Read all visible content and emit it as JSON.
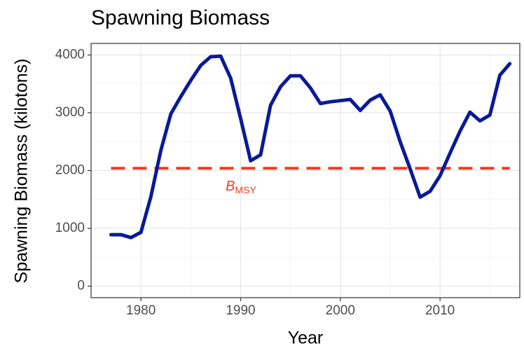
{
  "chart_data": {
    "type": "line",
    "title": "Spawning Biomass",
    "x_label": "Year",
    "y_label": "Spawning Biomass (kilotons)",
    "x": [
      1977,
      1978,
      1979,
      1980,
      1981,
      1982,
      1983,
      1984,
      1985,
      1986,
      1987,
      1988,
      1989,
      1990,
      1991,
      1992,
      1993,
      1994,
      1995,
      1996,
      1997,
      1998,
      1999,
      2000,
      2001,
      2002,
      2003,
      2004,
      2005,
      2006,
      2007,
      2008,
      2009,
      2010,
      2011,
      2012,
      2013,
      2014,
      2015,
      2016,
      2017
    ],
    "series": [
      {
        "name": "Spawning Biomass",
        "color": "#0a1a96",
        "values": [
          890,
          890,
          840,
          930,
          1550,
          2350,
          2980,
          3280,
          3560,
          3820,
          3970,
          3980,
          3600,
          2900,
          2170,
          2270,
          3130,
          3450,
          3640,
          3640,
          3430,
          3160,
          3190,
          3210,
          3230,
          3040,
          3220,
          3310,
          3030,
          2500,
          2030,
          1540,
          1640,
          1910,
          2300,
          2680,
          3010,
          2860,
          2960,
          3650,
          3850
        ]
      }
    ],
    "reference_line": {
      "label": "B",
      "subscript": "MSY",
      "value": 2040,
      "x": [
        1977,
        2017
      ],
      "color": "#f03c20"
    },
    "xlim": [
      1975,
      2018
    ],
    "xticks": [
      1980,
      1990,
      2000,
      2010
    ],
    "ylim": [
      -200,
      4200
    ],
    "yticks": [
      0,
      1000,
      2000,
      3000,
      4000
    ],
    "grid": true
  }
}
